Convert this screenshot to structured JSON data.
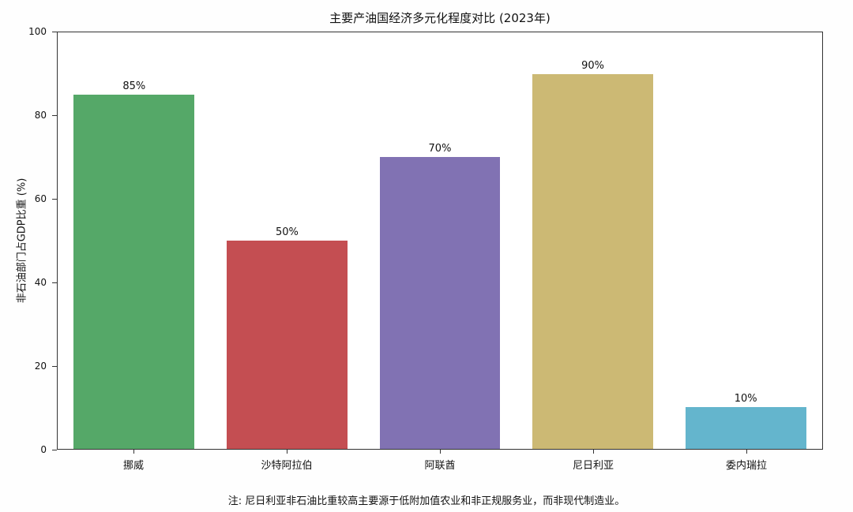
{
  "chart_data": {
    "type": "bar",
    "title": "主要产油国经济多元化程度对比 (2023年)",
    "categories": [
      "挪威",
      "沙特阿拉伯",
      "阿联酋",
      "尼日利亚",
      "委内瑞拉"
    ],
    "values": [
      85,
      50,
      70,
      90,
      10
    ],
    "value_labels": [
      "85%",
      "50%",
      "70%",
      "90%",
      "10%"
    ],
    "colors": [
      "#55a868",
      "#c44e52",
      "#8172b3",
      "#ccb974",
      "#64b5cd"
    ],
    "xlabel": "",
    "ylabel": "非石油部门占GDP比重 (%)",
    "ylim": [
      0,
      100
    ],
    "yticks": [
      0,
      20,
      40,
      60,
      80,
      100
    ],
    "grid": false,
    "legend": "none",
    "note": "注: 尼日利亚非石油比重较高主要源于低附加值农业和非正规服务业，而非现代制造业。"
  }
}
